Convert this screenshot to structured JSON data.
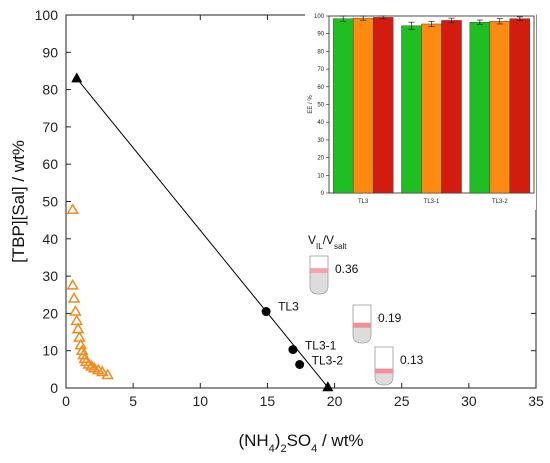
{
  "chart_data": [
    {
      "type": "scatter",
      "xlabel_parts": [
        "(NH",
        "4",
        ")",
        "2",
        "SO",
        "4",
        " / wt%"
      ],
      "ylabel": "[TBP][Sal] / wt%",
      "xlim": [
        0,
        35
      ],
      "ylim": [
        0,
        100
      ],
      "xticks": [
        "0",
        "5",
        "10",
        "15",
        "20",
        "25",
        "30",
        "35"
      ],
      "yticks": [
        "0",
        "10",
        "20",
        "30",
        "40",
        "50",
        "60",
        "70",
        "80",
        "90",
        "100"
      ],
      "grid": false,
      "binodal": {
        "color": "#f28a1e",
        "points": [
          [
            0.5,
            47.8
          ],
          [
            0.5,
            27.5
          ],
          [
            0.6,
            24.0
          ],
          [
            0.7,
            20.5
          ],
          [
            0.8,
            18.0
          ],
          [
            0.9,
            15.8
          ],
          [
            1.0,
            13.5
          ],
          [
            1.1,
            11.5
          ],
          [
            1.2,
            10.0
          ],
          [
            1.3,
            8.8
          ],
          [
            1.4,
            7.8
          ],
          [
            1.5,
            7.0
          ],
          [
            1.7,
            6.3
          ],
          [
            1.9,
            5.8
          ],
          [
            2.1,
            5.3
          ],
          [
            2.4,
            4.8
          ],
          [
            2.7,
            4.3
          ],
          [
            3.1,
            3.5
          ]
        ]
      },
      "tie_line": {
        "color": "#000000",
        "endpoints": [
          [
            0.8,
            83.0
          ],
          [
            19.5,
            0.2
          ]
        ],
        "mixtures": [
          {
            "label": "TL3",
            "x": 14.9,
            "y": 20.5
          },
          {
            "label": "TL3-1",
            "x": 16.9,
            "y": 10.3
          },
          {
            "label": "TL3-2",
            "x": 17.4,
            "y": 6.3
          }
        ]
      },
      "volume_ratio_label_parts": [
        "V",
        "IL",
        "/V",
        "salt"
      ],
      "tubes": [
        {
          "value": "0.36",
          "fill": 0.55,
          "color": "#f7a3a8"
        },
        {
          "value": "0.19",
          "fill": 0.4,
          "color": "#f28f97"
        },
        {
          "value": "0.13",
          "fill": 0.3,
          "color": "#f28f97"
        }
      ]
    },
    {
      "type": "bar",
      "categories": [
        "TL3",
        "TL3-1",
        "TL3-2"
      ],
      "ylabel": "EE / %",
      "ylim": [
        0,
        100
      ],
      "yticks": [
        "0",
        "10",
        "20",
        "30",
        "40",
        "50",
        "60",
        "70",
        "80",
        "90",
        "100"
      ],
      "series": [
        {
          "color": "#1fbf24",
          "values": [
            98.5,
            94.5,
            96.5
          ],
          "errors": [
            1.5,
            2.0,
            1.2
          ]
        },
        {
          "color": "#ff8a12",
          "values": [
            98.8,
            95.5,
            97.0
          ],
          "errors": [
            1.2,
            1.5,
            1.5
          ]
        },
        {
          "color": "#d31c10",
          "values": [
            99.2,
            97.5,
            98.5
          ],
          "errors": [
            0.8,
            1.3,
            1.0
          ]
        }
      ]
    }
  ]
}
